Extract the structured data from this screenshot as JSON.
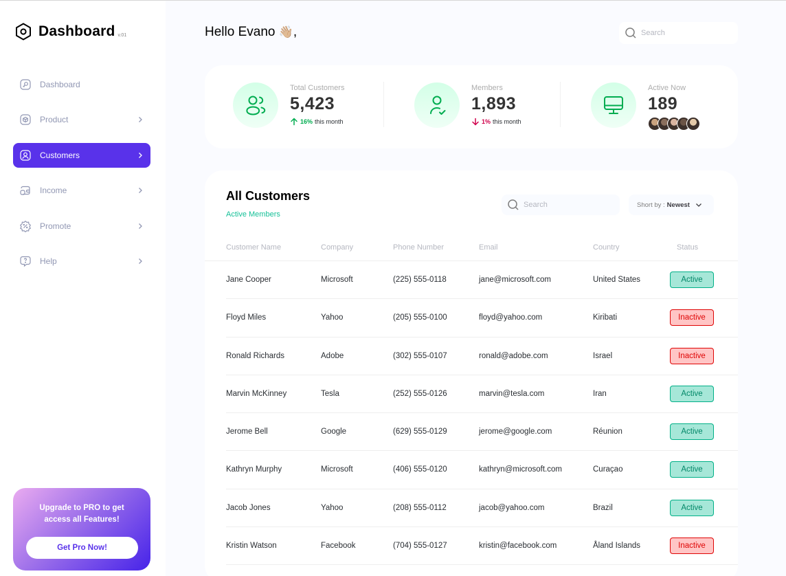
{
  "brand": {
    "title": "Dashboard",
    "version": "v.01"
  },
  "sidebar": {
    "items": [
      {
        "label": "Dashboard",
        "icon": "key-square-icon",
        "chevron": false,
        "active": false
      },
      {
        "label": "Product",
        "icon": "cube-icon",
        "chevron": true,
        "active": false
      },
      {
        "label": "Customers",
        "icon": "user-square-icon",
        "chevron": true,
        "active": true
      },
      {
        "label": "Income",
        "icon": "wallet-money-icon",
        "chevron": true,
        "active": false
      },
      {
        "label": "Promote",
        "icon": "discount-shape-icon",
        "chevron": true,
        "active": false
      },
      {
        "label": "Help",
        "icon": "message-question-icon",
        "chevron": true,
        "active": false
      }
    ]
  },
  "promo": {
    "text": "Upgrade to  PRO to get access all Features!",
    "button": "Get Pro Now!"
  },
  "header": {
    "greeting": "Hello Evano",
    "wave": "👋🏼",
    "comma": ",",
    "search_placeholder": "Search"
  },
  "stats": [
    {
      "label": "Total Customers",
      "value": "5,423",
      "change_pct": "16%",
      "change_text": "this month",
      "direction": "up",
      "icon": "users-icon"
    },
    {
      "label": "Members",
      "value": "1,893",
      "change_pct": "1%",
      "change_text": "this month",
      "direction": "down",
      "icon": "user-tick-icon"
    },
    {
      "label": "Active Now",
      "value": "189",
      "icon": "monitor-icon",
      "avatars": [
        "#C9A27E",
        "#8A6E5C",
        "#D8B4A0",
        "#6B5446",
        "#E4C9A8"
      ]
    }
  ],
  "table": {
    "title": "All Customers",
    "subtitle": "Active Members",
    "search_placeholder": "Search",
    "sort_label": "Short by :",
    "sort_value": "Newest",
    "columns": [
      "Customer Name",
      "Company",
      "Phone Number",
      "Email",
      "Country",
      "Status"
    ],
    "rows": [
      {
        "name": "Jane Cooper",
        "company": "Microsoft",
        "phone": "(225) 555-0118",
        "email": "jane@microsoft.com",
        "country": "United States",
        "status": "Active"
      },
      {
        "name": "Floyd Miles",
        "company": "Yahoo",
        "phone": "(205) 555-0100",
        "email": "floyd@yahoo.com",
        "country": "Kiribati",
        "status": "Inactive"
      },
      {
        "name": "Ronald Richards",
        "company": "Adobe",
        "phone": "(302) 555-0107",
        "email": "ronald@adobe.com",
        "country": "Israel",
        "status": "Inactive"
      },
      {
        "name": "Marvin McKinney",
        "company": "Tesla",
        "phone": "(252) 555-0126",
        "email": "marvin@tesla.com",
        "country": "Iran",
        "status": "Active"
      },
      {
        "name": "Jerome Bell",
        "company": "Google",
        "phone": "(629) 555-0129",
        "email": "jerome@google.com",
        "country": "Réunion",
        "status": "Active"
      },
      {
        "name": "Kathryn Murphy",
        "company": "Microsoft",
        "phone": "(406) 555-0120",
        "email": "kathryn@microsoft.com",
        "country": "Curaçao",
        "status": "Active"
      },
      {
        "name": "Jacob Jones",
        "company": "Yahoo",
        "phone": "(208) 555-0112",
        "email": "jacob@yahoo.com",
        "country": "Brazil",
        "status": "Active"
      },
      {
        "name": "Kristin Watson",
        "company": "Facebook",
        "phone": "(704) 555-0127",
        "email": "kristin@facebook.com",
        "country": "Åland Islands",
        "status": "Inactive"
      }
    ]
  },
  "colors": {
    "accent": "#5932EA",
    "green": "#00AC4F",
    "red": "#D0004B",
    "active_bg": "#A6E7D8",
    "inactive_bg": "#FFC5C5"
  }
}
